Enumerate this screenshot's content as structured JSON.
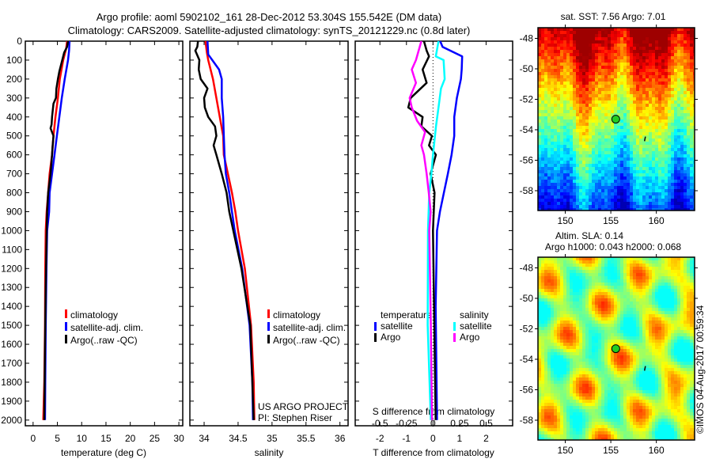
{
  "title": {
    "line1": "Argo profile: aoml 5902102_161 28-Dec-2012 53.304S 155.542E (DM data)",
    "line2": "Climatology: CARS2009. Satellite-adjusted climatology: synTS_20121229.nc (0.8d later)"
  },
  "watermark": "©IMOS 04-Aug-2017 00:59:34",
  "project": {
    "line1": "US ARGO PROJECT",
    "line2": "PI: Stephen Riser"
  },
  "colors": {
    "climatology": "#ff0000",
    "satellite": "#0000ff",
    "argo": "#000000",
    "sal_satellite": "#00ffff",
    "sal_argo": "#ff00ff"
  },
  "chart_data": [
    {
      "type": "line",
      "id": "temperature",
      "xlabel": "temperature (deg C)",
      "ylabel": "",
      "xlim": [
        -1.6,
        30.8
      ],
      "ylim": [
        2030,
        0
      ],
      "xticks": [
        "0",
        "5",
        "10",
        "15",
        "20",
        "25",
        "30"
      ],
      "xtick_values": [
        0,
        5,
        10,
        15,
        20,
        25,
        30
      ],
      "yticks": [
        "0",
        "100",
        "200",
        "300",
        "400",
        "500",
        "600",
        "700",
        "800",
        "900",
        "1000",
        "1100",
        "1200",
        "1300",
        "1400",
        "1500",
        "1600",
        "1700",
        "1800",
        "1900",
        "2000"
      ],
      "legend": [
        "climatology",
        "satellite-adj. clim.",
        "Argo(..raw -QC)"
      ],
      "legend_placement": "center",
      "series": [
        {
          "name": "climatology",
          "color": "#ff0000",
          "points": [
            [
              7.0,
              0
            ],
            [
              6.8,
              40
            ],
            [
              6.2,
              100
            ],
            [
              5.5,
              200
            ],
            [
              5.1,
              300
            ],
            [
              4.6,
              400
            ],
            [
              4.2,
              500
            ],
            [
              3.9,
              600
            ],
            [
              3.4,
              700
            ],
            [
              3.1,
              800
            ],
            [
              2.8,
              900
            ],
            [
              2.6,
              1000
            ],
            [
              2.5,
              1200
            ],
            [
              2.45,
              1500
            ],
            [
              2.3,
              1800
            ],
            [
              2.1,
              2000
            ]
          ]
        },
        {
          "name": "satellite-adj. clim.",
          "color": "#0000ff",
          "points": [
            [
              7.5,
              0
            ],
            [
              7.4,
              50
            ],
            [
              7.2,
              100
            ],
            [
              6.5,
              200
            ],
            [
              5.9,
              300
            ],
            [
              5.4,
              400
            ],
            [
              4.9,
              500
            ],
            [
              4.4,
              600
            ],
            [
              3.9,
              700
            ],
            [
              3.4,
              800
            ],
            [
              3.3,
              900
            ],
            [
              2.9,
              1000
            ],
            [
              2.75,
              1200
            ],
            [
              2.6,
              1500
            ],
            [
              2.5,
              1800
            ],
            [
              2.45,
              2000
            ]
          ]
        },
        {
          "name": "Argo(..raw -QC)",
          "color": "#000000",
          "points": [
            [
              7.2,
              0
            ],
            [
              7.0,
              30
            ],
            [
              6.4,
              60
            ],
            [
              6.0,
              100
            ],
            [
              5.4,
              160
            ],
            [
              5.1,
              200
            ],
            [
              4.8,
              250
            ],
            [
              4.7,
              300
            ],
            [
              4.2,
              330
            ],
            [
              3.9,
              400
            ],
            [
              3.8,
              440
            ],
            [
              3.6,
              460
            ],
            [
              4.2,
              500
            ],
            [
              4.0,
              560
            ],
            [
              3.9,
              600
            ],
            [
              3.6,
              700
            ],
            [
              3.1,
              800
            ],
            [
              2.9,
              900
            ],
            [
              2.8,
              1000
            ],
            [
              2.6,
              1300
            ],
            [
              2.45,
              1600
            ],
            [
              2.3,
              2000
            ]
          ]
        }
      ]
    },
    {
      "type": "line",
      "id": "salinity",
      "xlabel": "salinity",
      "xlim": [
        33.79,
        36.12
      ],
      "ylim": [
        2030,
        0
      ],
      "xticks": [
        "34",
        "34.5",
        "35",
        "35.5",
        "36"
      ],
      "xtick_values": [
        34,
        34.5,
        35,
        35.5,
        36
      ],
      "legend": [
        "climatology",
        "satellite-adj. clim.",
        "Argo(..raw -QC)"
      ],
      "legend_placement": "lower-center",
      "series": [
        {
          "name": "climatology",
          "color": "#ff0000",
          "points": [
            [
              34.02,
              0
            ],
            [
              34.04,
              60
            ],
            [
              34.06,
              100
            ],
            [
              34.13,
              200
            ],
            [
              34.18,
              300
            ],
            [
              34.23,
              400
            ],
            [
              34.28,
              500
            ],
            [
              34.29,
              600
            ],
            [
              34.35,
              700
            ],
            [
              34.41,
              800
            ],
            [
              34.46,
              900
            ],
            [
              34.5,
              1000
            ],
            [
              34.6,
              1200
            ],
            [
              34.69,
              1500
            ],
            [
              34.73,
              1800
            ],
            [
              34.74,
              2000
            ]
          ]
        },
        {
          "name": "satellite-adj. clim.",
          "color": "#0000ff",
          "points": [
            [
              34.05,
              0
            ],
            [
              34.06,
              70
            ],
            [
              34.12,
              100
            ],
            [
              34.22,
              150
            ],
            [
              34.26,
              200
            ],
            [
              34.26,
              300
            ],
            [
              34.28,
              400
            ],
            [
              34.29,
              500
            ],
            [
              34.3,
              600
            ],
            [
              34.32,
              700
            ],
            [
              34.37,
              800
            ],
            [
              34.41,
              900
            ],
            [
              34.45,
              1000
            ],
            [
              34.56,
              1200
            ],
            [
              34.67,
              1500
            ],
            [
              34.71,
              1800
            ],
            [
              34.72,
              2000
            ]
          ]
        },
        {
          "name": "Argo(..raw -QC)",
          "color": "#000000",
          "points": [
            [
              33.91,
              0
            ],
            [
              33.9,
              30
            ],
            [
              33.87,
              50
            ],
            [
              33.93,
              100
            ],
            [
              33.92,
              150
            ],
            [
              33.95,
              200
            ],
            [
              34.05,
              250
            ],
            [
              34.0,
              300
            ],
            [
              34.01,
              350
            ],
            [
              34.06,
              400
            ],
            [
              34.16,
              450
            ],
            [
              34.18,
              500
            ],
            [
              34.14,
              550
            ],
            [
              34.18,
              600
            ],
            [
              34.26,
              700
            ],
            [
              34.33,
              800
            ],
            [
              34.37,
              900
            ],
            [
              34.43,
              1000
            ],
            [
              34.55,
              1200
            ],
            [
              34.68,
              1500
            ],
            [
              34.71,
              1800
            ],
            [
              34.73,
              2000
            ]
          ]
        }
      ]
    },
    {
      "type": "line",
      "id": "differences",
      "xlabel": "T difference from climatology",
      "x2label": "S difference from climatology",
      "xlim": [
        -2.93,
        3.0
      ],
      "ylim": [
        2030,
        0
      ],
      "xticks": [
        "-2",
        "-1",
        "0",
        "1",
        "2"
      ],
      "xtick_values": [
        -2,
        -1,
        0,
        1,
        2
      ],
      "x2ticks": [
        "-0.5",
        "-0.25",
        "0",
        "0.25",
        "0.5"
      ],
      "x2tick_values": [
        -0.5,
        -0.25,
        0,
        0.25,
        0.5
      ],
      "legend_temperature": {
        "title": "temperature",
        "items": [
          "satellite",
          "Argo"
        ]
      },
      "legend_salinity": {
        "title": "salinity",
        "items": [
          "satellite",
          "Argo"
        ]
      },
      "series": [
        {
          "name": "T satellite",
          "axis": "T",
          "color": "#0000ff",
          "points": [
            [
              0.27,
              0
            ],
            [
              0.36,
              30
            ],
            [
              1.1,
              80
            ],
            [
              1.08,
              150
            ],
            [
              1.05,
              200
            ],
            [
              0.9,
              300
            ],
            [
              0.8,
              400
            ],
            [
              0.8,
              500
            ],
            [
              0.7,
              600
            ],
            [
              0.56,
              700
            ],
            [
              0.41,
              800
            ],
            [
              0.26,
              900
            ],
            [
              0.15,
              1000
            ],
            [
              0.1,
              1400
            ],
            [
              0.15,
              2000
            ]
          ]
        },
        {
          "name": "T Argo",
          "axis": "T",
          "color": "#000000",
          "points": [
            [
              -0.34,
              0
            ],
            [
              -0.24,
              50
            ],
            [
              -0.15,
              80
            ],
            [
              -0.39,
              150
            ],
            [
              -0.24,
              220
            ],
            [
              -0.84,
              300
            ],
            [
              -0.93,
              350
            ],
            [
              -0.39,
              400
            ],
            [
              -0.44,
              450
            ],
            [
              -0.04,
              500
            ],
            [
              -0.15,
              550
            ],
            [
              0.11,
              600
            ],
            [
              -0.09,
              700
            ],
            [
              0.06,
              800
            ],
            [
              0.0,
              1000
            ],
            [
              0.05,
              1500
            ],
            [
              0.1,
              2000
            ]
          ]
        },
        {
          "name": "S satellite",
          "axis": "S",
          "color": "#00ffff",
          "points": [
            [
              0.052,
              0
            ],
            [
              0.027,
              80
            ],
            [
              0.1,
              100
            ],
            [
              0.11,
              200
            ],
            [
              0.075,
              250
            ],
            [
              0.052,
              350
            ],
            [
              0.028,
              450
            ],
            [
              0.0,
              600
            ],
            [
              -0.015,
              700
            ],
            [
              -0.035,
              800
            ],
            [
              -0.047,
              1000
            ],
            [
              -0.05,
              1500
            ],
            [
              -0.02,
              2000
            ]
          ]
        },
        {
          "name": "S Argo",
          "axis": "S",
          "color": "#ff00ff",
          "points": [
            [
              -0.11,
              0
            ],
            [
              -0.16,
              100
            ],
            [
              -0.2,
              150
            ],
            [
              -0.16,
              220
            ],
            [
              -0.22,
              300
            ],
            [
              -0.2,
              350
            ],
            [
              -0.15,
              420
            ],
            [
              -0.075,
              480
            ],
            [
              -0.11,
              550
            ],
            [
              -0.085,
              600
            ],
            [
              -0.06,
              700
            ],
            [
              -0.04,
              800
            ],
            [
              -0.022,
              900
            ],
            [
              -0.035,
              1000
            ],
            [
              -0.02,
              1500
            ],
            [
              -0.01,
              2000
            ]
          ]
        }
      ]
    },
    {
      "type": "heatmap",
      "id": "sst-map",
      "title": "sat. SST: 7.56 Argo: 7.01",
      "xlim": [
        147.0,
        164.2
      ],
      "ylim": [
        -59.3,
        -47.3
      ],
      "xticks": [
        "150",
        "155",
        "160"
      ],
      "xtick_values": [
        150,
        155,
        160
      ],
      "yticks": [
        "-48",
        "-50",
        "-52",
        "-54",
        "-56",
        "-58"
      ],
      "ytick_values": [
        -48,
        -50,
        -52,
        -54,
        -56,
        -58
      ],
      "marker": {
        "lon": 155.542,
        "lat": -53.304
      },
      "colormap": "jet"
    },
    {
      "type": "heatmap",
      "id": "sla-map",
      "title": "Altim. SLA: 0.14",
      "subtitle": "Argo h1000: 0.043 h2000: 0.068",
      "xlim": [
        147.0,
        164.2
      ],
      "ylim": [
        -59.3,
        -47.3
      ],
      "xticks": [
        "150",
        "155",
        "160"
      ],
      "xtick_values": [
        150,
        155,
        160
      ],
      "yticks": [
        "-48",
        "-50",
        "-52",
        "-54",
        "-56",
        "-58"
      ],
      "ytick_values": [
        -48,
        -50,
        -52,
        -54,
        -56,
        -58
      ],
      "marker": {
        "lon": 155.542,
        "lat": -53.304
      },
      "colormap": "jet"
    }
  ]
}
